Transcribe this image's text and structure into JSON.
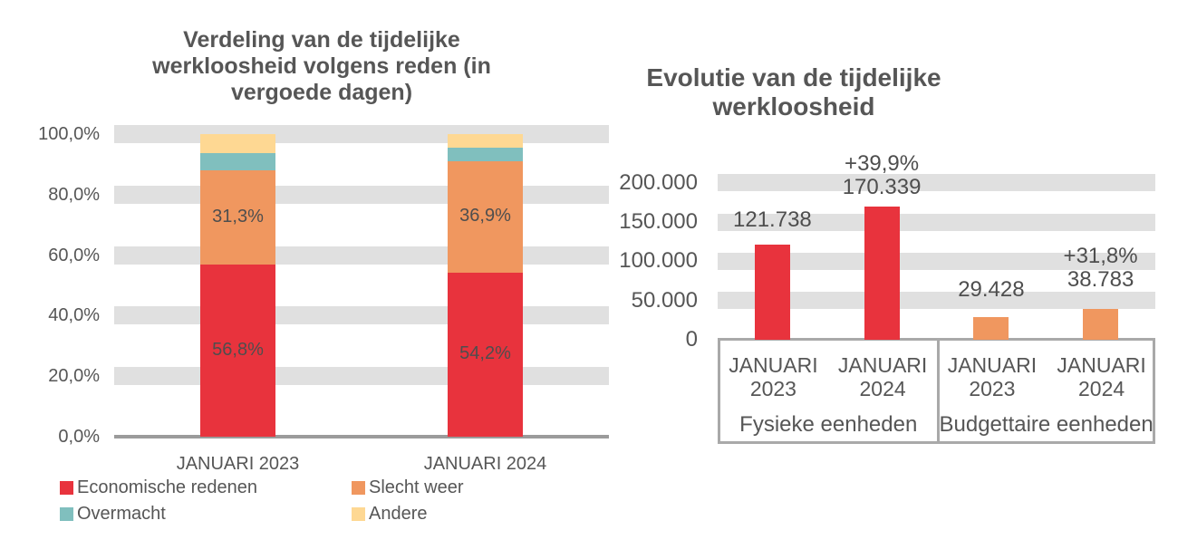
{
  "colors": {
    "bar_red": "#E8333D",
    "bar_orange": "#F0975F",
    "bar_teal": "#80BFBE",
    "bar_yellow": "#FED893",
    "gridline_band": "#E0E0E0",
    "axis_line": "#9B9B9B",
    "box_border": "#A9A9A9",
    "text": "#565656"
  },
  "chart_data": [
    {
      "type": "stacked_bar",
      "title": "Verdeling van de tijdelijke werkloosheid volgens reden (in vergoede dagen)",
      "xlabel": "",
      "ylabel": "",
      "ylim": [
        0,
        100
      ],
      "grid": "horizontal-bands",
      "legend_position": "bottom",
      "y_ticks": [
        {
          "value": 0,
          "label": "0,0%"
        },
        {
          "value": 20,
          "label": "20,0%"
        },
        {
          "value": 40,
          "label": "40,0%"
        },
        {
          "value": 60,
          "label": "60,0%"
        },
        {
          "value": 80,
          "label": "80,0%"
        },
        {
          "value": 100,
          "label": "100,0%"
        }
      ],
      "categories": [
        "JANUARI 2023",
        "JANUARI 2024"
      ],
      "series": [
        {
          "name": "Economische redenen",
          "color": "#E8333D",
          "values": [
            56.8,
            54.2
          ],
          "data_labels": [
            "56,8%",
            "54,2%"
          ]
        },
        {
          "name": "Slecht weer",
          "color": "#F0975F",
          "values": [
            31.3,
            36.9
          ],
          "data_labels": [
            "31,3%",
            "36,9%"
          ]
        },
        {
          "name": "Overmacht",
          "color": "#80BFBE",
          "values": [
            5.7,
            4.5
          ],
          "data_labels": [
            null,
            null
          ],
          "estimated": true
        },
        {
          "name": "Andere",
          "color": "#FED893",
          "values": [
            6.2,
            4.4
          ],
          "data_labels": [
            null,
            null
          ],
          "estimated": true
        }
      ]
    },
    {
      "type": "bar",
      "title": "Evolutie van de tijdelijke werkloosheid",
      "xlabel": "",
      "ylabel": "",
      "ylim": [
        0,
        200000
      ],
      "grid": "horizontal-bands",
      "y_ticks": [
        {
          "value": 0,
          "label": "0"
        },
        {
          "value": 50000,
          "label": "50.000"
        },
        {
          "value": 100000,
          "label": "100.000"
        },
        {
          "value": 150000,
          "label": "150.000"
        },
        {
          "value": 200000,
          "label": "200.000"
        }
      ],
      "groups": [
        {
          "name": "Fysieke eenheden",
          "bars": [
            {
              "category": "JANUARI 2023",
              "value": 121738,
              "color": "#E8333D",
              "label_lines": [
                "121.738"
              ]
            },
            {
              "category": "JANUARI 2024",
              "value": 170339,
              "color": "#E8333D",
              "label_lines": [
                "+39,9%",
                "170.339"
              ]
            }
          ]
        },
        {
          "name": "Budgettaire eenheden",
          "bars": [
            {
              "category": "JANUARI 2023",
              "value": 29428,
              "color": "#F0975F",
              "label_lines": [
                "29.428"
              ]
            },
            {
              "category": "JANUARI 2024",
              "value": 38783,
              "color": "#F0975F",
              "label_lines": [
                "+31,8%",
                "38.783"
              ]
            }
          ]
        }
      ]
    }
  ]
}
